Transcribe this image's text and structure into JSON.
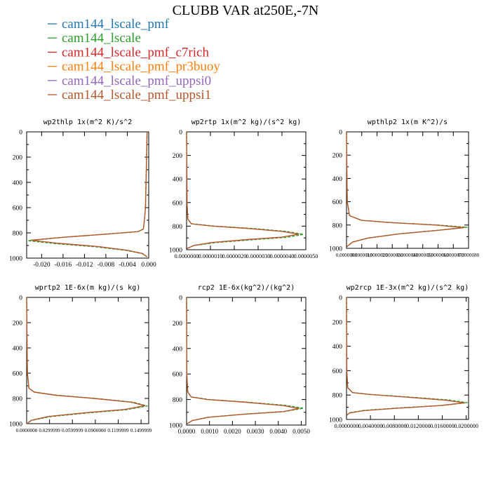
{
  "title": "CLUBB VAR at250E,-7N",
  "legend": [
    {
      "name": "cam144_lscale_pmf",
      "color": "#1f77b4"
    },
    {
      "name": "cam144_lscale",
      "color": "#2ca02c"
    },
    {
      "name": "cam144_lscale_pmf_c7rich",
      "color": "#d62728"
    },
    {
      "name": "cam144_lscale_pmf_pr3buoy",
      "color": "#ff7f0e"
    },
    {
      "name": "cam144_lscale_pmf_uppsi0",
      "color": "#9467bd"
    },
    {
      "name": "cam144_lscale_pmf_uppsi1",
      "color": "#b5572a"
    }
  ],
  "chart_data": [
    {
      "type": "line",
      "title": "wp2thlp   1x(m^2 K)/s^2",
      "xlim": [
        -0.0228,
        0.0
      ],
      "ylim": [
        1000,
        0
      ],
      "xticks": [
        -0.02,
        -0.016,
        -0.012,
        -0.008,
        -0.004,
        0.0
      ],
      "xtick_labels": [
        "-0.020",
        "-0.016",
        "-0.012",
        "-0.008",
        "-0.004",
        "0.000"
      ],
      "yticks": [
        0,
        200,
        400,
        600,
        800,
        1000
      ],
      "ytick_labels": [
        "0",
        "200",
        "400",
        "600",
        "800",
        "1000"
      ],
      "series": [
        {
          "name": "cam144_lscale",
          "color": "#2ca02c",
          "dashed": true,
          "x": [
            -0.0003,
            -0.0004,
            -0.0005,
            -0.0006,
            -0.0008,
            -0.001,
            -0.002,
            -0.008,
            -0.016,
            -0.0226,
            -0.0175,
            -0.01,
            -0.004,
            -0.0012,
            -0.0003
          ],
          "y": [
            0,
            200,
            400,
            600,
            700,
            770,
            790,
            810,
            835,
            862,
            885,
            910,
            940,
            965,
            990
          ]
        },
        {
          "name": "cam144_lscale_pmf_uppsi1",
          "color": "#b5572a",
          "dashed": false,
          "x": [
            -0.0003,
            -0.0004,
            -0.0005,
            -0.0006,
            -0.0008,
            -0.001,
            -0.002,
            -0.008,
            -0.016,
            -0.022,
            -0.017,
            -0.0095,
            -0.004,
            -0.0012,
            -0.0003
          ],
          "y": [
            0,
            200,
            400,
            600,
            700,
            770,
            790,
            810,
            835,
            858,
            882,
            908,
            938,
            963,
            990
          ]
        }
      ]
    },
    {
      "type": "line",
      "title": "wp2rtp   1x(m^2 kg)/(s^2 kg)",
      "xlim": [
        0,
        5e-06
      ],
      "ylim": [
        1000,
        0
      ],
      "xticks": [
        0,
        1e-06,
        2e-06,
        3e-06,
        4e-06,
        5e-06
      ],
      "xtick_labels": [
        "0.0000000",
        "0.0000010",
        "0.0000020",
        "0.0000030",
        "0.0000040",
        "0.0000050"
      ],
      "yticks": [
        0,
        200,
        400,
        600,
        800,
        1000
      ],
      "ytick_labels": [
        "0",
        "200",
        "400",
        "600",
        "800",
        "1000"
      ],
      "series": [
        {
          "name": "cam144_lscale",
          "color": "#2ca02c",
          "dashed": true,
          "x": [
            0,
            1e-08,
            2e-08,
            5e-08,
            2e-07,
            1.2e-06,
            2.8e-06,
            4.2e-06,
            4.9e-06,
            4.2e-06,
            2.8e-06,
            1.2e-06,
            3e-07,
            2e-08
          ],
          "y": [
            0,
            300,
            600,
            740,
            780,
            800,
            820,
            845,
            870,
            895,
            915,
            940,
            965,
            990
          ]
        },
        {
          "name": "cam144_lscale_pmf_uppsi1",
          "color": "#b5572a",
          "dashed": false,
          "x": [
            0,
            1e-08,
            2e-08,
            5e-08,
            2e-07,
            1.1e-06,
            2.6e-06,
            4e-06,
            4.7e-06,
            4e-06,
            2.6e-06,
            1.1e-06,
            3e-07,
            2e-08
          ],
          "y": [
            0,
            300,
            600,
            740,
            780,
            800,
            820,
            845,
            868,
            893,
            913,
            938,
            964,
            990
          ]
        }
      ]
    },
    {
      "type": "line",
      "title": "wpthlp2   1x(m K^2)/s",
      "xlim": [
        0,
        8e-06
      ],
      "ylim": [
        1000,
        0
      ],
      "xticks": [
        0,
        1e-06,
        2e-06,
        3e-06,
        4e-06,
        5e-06,
        6e-06,
        7e-06,
        8e-06
      ],
      "xtick_labels": [
        "0.0000000",
        "0.0000010",
        "0.0000020",
        "0.0000030",
        "0.0000040",
        "0.0000050",
        "0.0000060",
        "0.0000070",
        "0.0000080"
      ],
      "yticks": [
        0,
        200,
        400,
        600,
        800,
        1000
      ],
      "ytick_labels": [
        "0",
        "200",
        "400",
        "600",
        "800",
        "1000"
      ],
      "series": [
        {
          "name": "cam144_lscale",
          "color": "#2ca02c",
          "dashed": true,
          "x": [
            0,
            2e-08,
            5e-08,
            2e-07,
            1e-06,
            3e-06,
            6e-06,
            7.9e-06,
            6e-06,
            3.5e-06,
            1.5e-06,
            4e-07,
            3e-08
          ],
          "y": [
            0,
            300,
            600,
            720,
            760,
            780,
            800,
            820,
            845,
            875,
            910,
            945,
            985
          ]
        },
        {
          "name": "cam144_lscale_pmf_uppsi1",
          "color": "#b5572a",
          "dashed": false,
          "x": [
            0,
            2e-08,
            5e-08,
            2e-07,
            1e-06,
            3e-06,
            5.8e-06,
            7.7e-06,
            5.9e-06,
            3.4e-06,
            1.4e-06,
            4e-07,
            3e-08
          ],
          "y": [
            0,
            300,
            600,
            720,
            760,
            780,
            800,
            822,
            847,
            877,
            912,
            947,
            985
          ]
        }
      ]
    },
    {
      "type": "line",
      "title": "wprtp2   1E-6x(m kg)/(s kg)",
      "xlim": [
        0,
        0.1599999
      ],
      "ylim": [
        1000,
        0
      ],
      "xticks": [
        0,
        0.0299999,
        0.0599999,
        0.09,
        0.1199999,
        0.1499999
      ],
      "xtick_labels": [
        "0.0000000",
        "0.0299999",
        "0.0599999",
        "0.0900000",
        "0.1199999",
        "0.1499999"
      ],
      "yticks": [
        0,
        200,
        400,
        600,
        800,
        1000
      ],
      "ytick_labels": [
        "0",
        "200",
        "400",
        "600",
        "800",
        "1000"
      ],
      "series": [
        {
          "name": "cam144_lscale",
          "color": "#2ca02c",
          "dashed": true,
          "x": [
            0,
            0.0004,
            0.001,
            0.003,
            0.01,
            0.04,
            0.09,
            0.14,
            0.158,
            0.13,
            0.08,
            0.03,
            0.006,
            0.0005
          ],
          "y": [
            0,
            300,
            600,
            720,
            750,
            775,
            800,
            830,
            860,
            890,
            915,
            945,
            975,
            1000
          ]
        },
        {
          "name": "cam144_lscale_pmf_uppsi1",
          "color": "#b5572a",
          "dashed": false,
          "x": [
            0,
            0.0004,
            0.001,
            0.003,
            0.01,
            0.038,
            0.088,
            0.137,
            0.155,
            0.128,
            0.078,
            0.029,
            0.006,
            0.0005
          ],
          "y": [
            0,
            300,
            600,
            720,
            750,
            775,
            800,
            830,
            858,
            888,
            913,
            943,
            973,
            1000
          ]
        }
      ]
    },
    {
      "type": "line",
      "title": "rcp2   1E-6x(kg^2)/(kg^2)",
      "xlim": [
        0,
        0.0052
      ],
      "ylim": [
        1000,
        0
      ],
      "xticks": [
        0,
        0.001,
        0.002,
        0.003,
        0.004,
        0.005
      ],
      "xtick_labels": [
        "0.0000",
        "0.0010",
        "0.0020",
        "0.0030",
        "0.0040",
        "0.0050"
      ],
      "yticks": [
        0,
        200,
        400,
        600,
        800,
        1000
      ],
      "ytick_labels": [
        "0",
        "200",
        "400",
        "600",
        "800",
        "1000"
      ],
      "series": [
        {
          "name": "cam144_lscale",
          "color": "#2ca02c",
          "dashed": true,
          "x": [
            0,
            5e-06,
            1e-05,
            5e-05,
            0.0002,
            0.001,
            0.0026,
            0.0043,
            0.0051,
            0.0043,
            0.0026,
            0.001,
            0.00025,
            2e-05
          ],
          "y": [
            0,
            300,
            600,
            740,
            780,
            800,
            820,
            845,
            868,
            893,
            913,
            938,
            964,
            990
          ]
        },
        {
          "name": "cam144_lscale_pmf_uppsi1",
          "color": "#b5572a",
          "dashed": false,
          "x": [
            0,
            5e-06,
            1e-05,
            5e-05,
            0.0002,
            0.0009,
            0.0025,
            0.0042,
            0.0049,
            0.0042,
            0.0025,
            0.0009,
            0.00025,
            2e-05
          ],
          "y": [
            0,
            300,
            600,
            740,
            780,
            800,
            820,
            847,
            870,
            895,
            915,
            940,
            965,
            990
          ]
        }
      ]
    },
    {
      "type": "line",
      "title": "wp2rcp   1E-3x(m^2 kg)/(s^2 kg)",
      "xlim": [
        0,
        0.0204
      ],
      "ylim": [
        1000,
        0
      ],
      "xticks": [
        0,
        0.004,
        0.008,
        0.012,
        0.016,
        0.02
      ],
      "xtick_labels": [
        "0.0000000",
        "0.0040000",
        "0.0080000",
        "0.0120000",
        "0.0160000",
        "0.0200000"
      ],
      "yticks": [
        0,
        200,
        400,
        600,
        800,
        1000
      ],
      "ytick_labels": [
        "0",
        "200",
        "400",
        "600",
        "800",
        "1000"
      ],
      "series": [
        {
          "name": "cam144_lscale",
          "color": "#2ca02c",
          "dashed": true,
          "x": [
            0,
            2e-05,
            5e-05,
            0.0002,
            0.001,
            0.004,
            0.01,
            0.017,
            0.0202,
            0.016,
            0.009,
            0.003,
            0.0005,
            3e-05
          ],
          "y": [
            0,
            300,
            600,
            740,
            780,
            795,
            815,
            840,
            862,
            885,
            905,
            925,
            945,
            965
          ]
        },
        {
          "name": "cam144_lscale_pmf_uppsi1",
          "color": "#b5572a",
          "dashed": false,
          "x": [
            0,
            2e-05,
            5e-05,
            0.0002,
            0.001,
            0.0038,
            0.0095,
            0.0165,
            0.0197,
            0.0155,
            0.0088,
            0.003,
            0.0005,
            3e-05
          ],
          "y": [
            0,
            300,
            600,
            740,
            780,
            795,
            815,
            842,
            864,
            887,
            907,
            927,
            947,
            967
          ]
        }
      ]
    }
  ]
}
